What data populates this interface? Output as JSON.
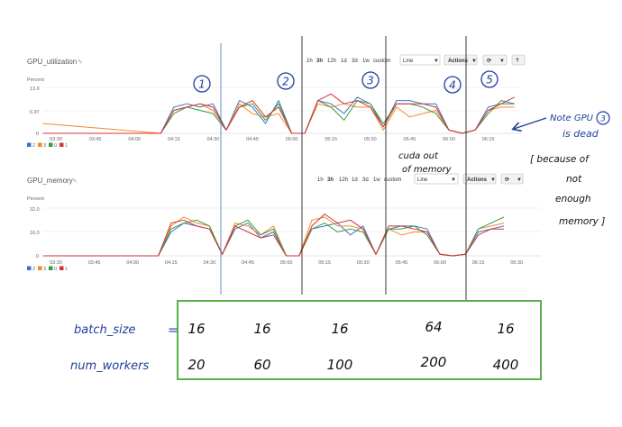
{
  "charts": [
    {
      "title": "GPU_utilization",
      "ylabel": "Percent",
      "yticks": [
        "13.9",
        "6.97",
        "0"
      ],
      "xticks": [
        "03:30",
        "03:45",
        "04:00",
        "04:15",
        "04:30",
        "04:45",
        "05:00",
        "05:15",
        "05:30",
        "05:45",
        "06:00",
        "06:15"
      ],
      "ranges": [
        "1h",
        "3h",
        "12h",
        "1d",
        "3d",
        "1w",
        "custom"
      ],
      "active_range": "3h",
      "chart_type_select": "Line",
      "actions_label": "Actions",
      "legend": [
        "2",
        "3",
        "0",
        "1"
      ]
    },
    {
      "title": "GPU_memory",
      "ylabel": "Percent",
      "yticks": [
        "32.0",
        "16.0",
        "0"
      ],
      "xticks": [
        "03:30",
        "03:45",
        "04:00",
        "04:15",
        "04:30",
        "04:45",
        "05:00",
        "05:15",
        "05:30",
        "05:45",
        "06:00",
        "06:15",
        "06:30"
      ],
      "ranges": [
        "1h",
        "3h",
        "12h",
        "1d",
        "3d",
        "1w",
        "custom"
      ],
      "active_range": "3h",
      "chart_type_select": "Line",
      "actions_label": "Actions",
      "legend": [
        "2",
        "3",
        "0",
        "1"
      ]
    }
  ],
  "colors": {
    "2": "#3a76c4",
    "3": "#f08a2c",
    "0": "#3a9a3a",
    "1": "#d6303a",
    "ink": "#1f3e9e",
    "box": "#5ab04a"
  },
  "chart_data": [
    {
      "type": "line",
      "title": "GPU_utilization",
      "ylabel": "Percent",
      "ylim": [
        0,
        14
      ],
      "x": [
        "03:25",
        "04:10",
        "04:15",
        "04:20",
        "04:25",
        "04:30",
        "04:35",
        "04:40",
        "04:45",
        "04:50",
        "04:55",
        "05:00",
        "05:05",
        "05:10",
        "05:15",
        "05:20",
        "05:25",
        "05:30",
        "05:35",
        "05:40",
        "05:45",
        "05:50",
        "05:55",
        "06:00",
        "06:05",
        "06:10",
        "06:15",
        "06:20",
        "06:25"
      ],
      "series": [
        {
          "name": "2",
          "values": [
            0,
            0,
            8,
            9,
            8,
            9,
            1,
            10,
            8,
            3,
            10,
            0,
            0,
            10,
            9,
            6,
            11,
            9,
            2,
            10,
            10,
            9,
            9,
            1,
            0,
            1,
            8,
            9,
            9
          ]
        },
        {
          "name": "3",
          "values": [
            3,
            0,
            7,
            8,
            9,
            7,
            1,
            9,
            6,
            5,
            6,
            0,
            0,
            9,
            8,
            9,
            8,
            8,
            1,
            8,
            5,
            6,
            7,
            1,
            0,
            1,
            7,
            8,
            8
          ]
        },
        {
          "name": "0",
          "values": [
            0,
            0,
            6,
            8,
            7,
            6,
            1,
            8,
            9,
            4,
            9,
            0,
            0,
            10,
            8,
            4,
            10,
            9,
            3,
            9,
            9,
            8,
            6,
            1,
            0,
            1,
            6,
            10,
            9
          ]
        },
        {
          "name": "1",
          "values": [
            0,
            0,
            7,
            8,
            9,
            8,
            1,
            8,
            10,
            5,
            8,
            0,
            0,
            10,
            12,
            9,
            10,
            8,
            2,
            9,
            9,
            9,
            8,
            1,
            0,
            1,
            7,
            9,
            11
          ]
        }
      ]
    },
    {
      "type": "line",
      "title": "GPU_memory",
      "ylabel": "Percent",
      "ylim": [
        0,
        32
      ],
      "x": [
        "03:25",
        "04:10",
        "04:15",
        "04:20",
        "04:25",
        "04:30",
        "04:35",
        "04:40",
        "04:45",
        "04:50",
        "04:55",
        "05:00",
        "05:05",
        "05:10",
        "05:15",
        "05:20",
        "05:25",
        "05:30",
        "05:35",
        "05:40",
        "05:45",
        "05:50",
        "05:55",
        "06:00",
        "06:05",
        "06:10",
        "06:15",
        "06:20",
        "06:25"
      ],
      "series": [
        {
          "name": "2",
          "values": [
            0,
            0,
            16,
            22,
            20,
            18,
            1,
            18,
            22,
            12,
            16,
            0,
            0,
            18,
            20,
            22,
            14,
            20,
            1,
            18,
            20,
            20,
            18,
            1,
            0,
            1,
            16,
            18,
            20
          ]
        },
        {
          "name": "3",
          "values": [
            0,
            0,
            20,
            26,
            22,
            20,
            1,
            22,
            20,
            14,
            20,
            0,
            0,
            24,
            26,
            20,
            20,
            18,
            1,
            18,
            14,
            16,
            16,
            1,
            0,
            1,
            18,
            20,
            22
          ]
        },
        {
          "name": "0",
          "values": [
            0,
            0,
            18,
            22,
            24,
            20,
            1,
            20,
            24,
            14,
            18,
            0,
            0,
            18,
            22,
            16,
            18,
            16,
            1,
            18,
            18,
            20,
            14,
            1,
            0,
            1,
            18,
            22,
            26
          ]
        },
        {
          "name": "1",
          "values": [
            0,
            0,
            22,
            24,
            20,
            18,
            1,
            20,
            16,
            12,
            14,
            0,
            0,
            20,
            28,
            22,
            24,
            18,
            1,
            20,
            20,
            18,
            16,
            1,
            0,
            1,
            14,
            18,
            18
          ]
        }
      ]
    },
    {
      "type": "table",
      "rows": [
        {
          "label": "batch_size",
          "values": [
            "16",
            "16",
            "16",
            "64",
            "16"
          ]
        },
        {
          "label": "num_workers",
          "values": [
            "20",
            "60",
            "100",
            "200",
            "400"
          ]
        }
      ]
    }
  ],
  "annotations": {
    "phases": [
      "1",
      "2",
      "3",
      "4",
      "5"
    ],
    "oom_note": [
      "cuda out",
      "of memory"
    ],
    "gpu_note": [
      "Note GPU",
      "is dead"
    ],
    "gpu_note_number": "3",
    "reason_note": [
      "[ because of",
      "not",
      "enough",
      "memory ]"
    ],
    "table_eq": "="
  }
}
